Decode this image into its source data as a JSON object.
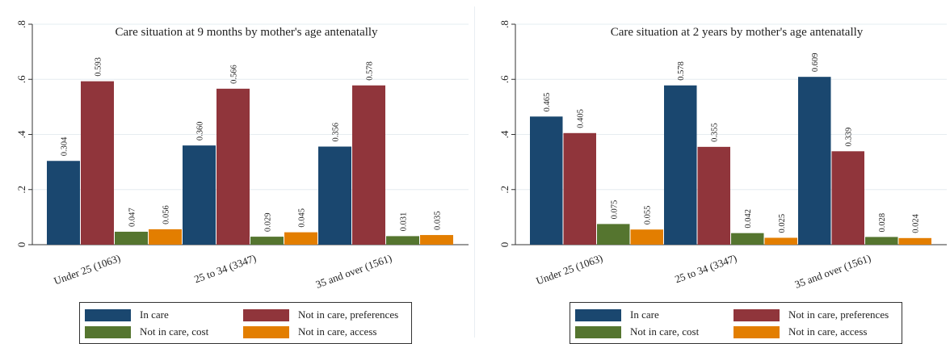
{
  "legend": [
    {
      "label": "In care",
      "color": "#1a476f"
    },
    {
      "label": "Not in care, preferences",
      "color": "#90353b"
    },
    {
      "label": "Not in care, cost",
      "color": "#55752f"
    },
    {
      "label": "Not in care, access",
      "color": "#e37e00"
    }
  ],
  "chart_data": [
    {
      "type": "bar",
      "title": "Care situation at 9 months by mother's age antenatally",
      "categories": [
        "Under 25 (1063)",
        "25 to 34 (3347)",
        "35 and over (1561)"
      ],
      "ylim": [
        0,
        0.8
      ],
      "yticks": [
        0,
        0.2,
        0.4,
        0.6,
        0.8
      ],
      "ytick_labels": [
        "0",
        ".2",
        ".4",
        ".6",
        ".8"
      ],
      "grid": true,
      "legend_position": "bottom",
      "series": [
        {
          "name": "In care",
          "values": [
            0.304,
            0.36,
            0.356
          ],
          "labels": [
            "0.304",
            "0.360",
            "0.356"
          ]
        },
        {
          "name": "Not in care, preferences",
          "values": [
            0.593,
            0.566,
            0.578
          ],
          "labels": [
            "0.593",
            "0.566",
            "0.578"
          ]
        },
        {
          "name": "Not in care, cost",
          "values": [
            0.047,
            0.029,
            0.031
          ],
          "labels": [
            "0.047",
            "0.029",
            "0.031"
          ]
        },
        {
          "name": "Not in care, access",
          "values": [
            0.056,
            0.045,
            0.035
          ],
          "labels": [
            "0.056",
            "0.045",
            "0.035"
          ]
        }
      ]
    },
    {
      "type": "bar",
      "title": "Care situation at 2 years by mother's age antenatally",
      "categories": [
        "Under 25 (1063)",
        "25 to 34 (3347)",
        "35 and over (1561)"
      ],
      "ylim": [
        0,
        0.8
      ],
      "yticks": [
        0,
        0.2,
        0.4,
        0.6,
        0.8
      ],
      "ytick_labels": [
        "0",
        ".2",
        ".4",
        ".6",
        ".8"
      ],
      "grid": true,
      "legend_position": "bottom",
      "series": [
        {
          "name": "In care",
          "values": [
            0.465,
            0.578,
            0.609
          ],
          "labels": [
            "0.465",
            "0.578",
            "0.609"
          ]
        },
        {
          "name": "Not in care, preferences",
          "values": [
            0.405,
            0.355,
            0.339
          ],
          "labels": [
            "0.405",
            "0.355",
            "0.339"
          ]
        },
        {
          "name": "Not in care, cost",
          "values": [
            0.075,
            0.042,
            0.028
          ],
          "labels": [
            "0.075",
            "0.042",
            "0.028"
          ]
        },
        {
          "name": "Not in care, access",
          "values": [
            0.055,
            0.025,
            0.024
          ],
          "labels": [
            "0.055",
            "0.025",
            "0.024"
          ]
        }
      ]
    }
  ]
}
